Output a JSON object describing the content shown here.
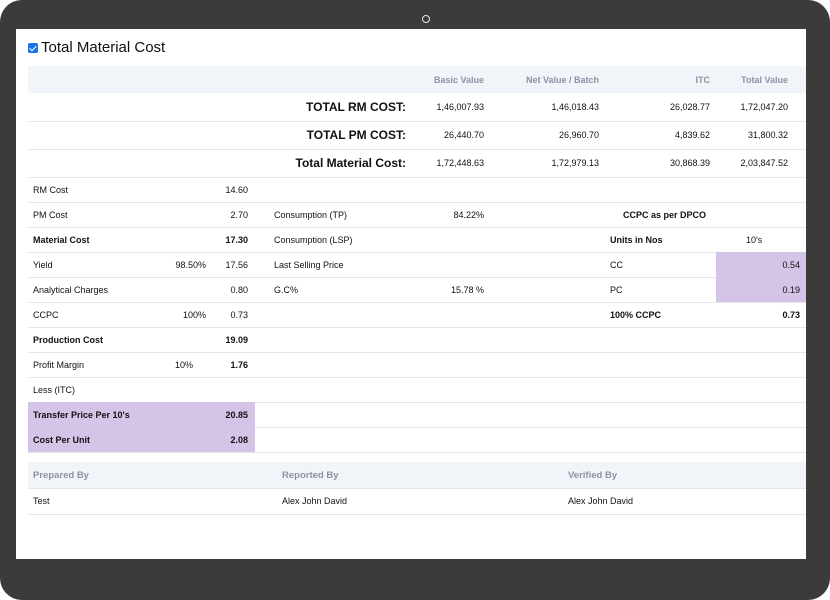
{
  "section": {
    "title": "Total Material Cost"
  },
  "summary_header": {
    "basic_value": "Basic Value",
    "net_value_batch": "Net Value / Batch",
    "itc": "ITC",
    "total_value": "Total Value"
  },
  "summary_rows": [
    {
      "label": "TOTAL RM COST:",
      "basic": "1,46,007.93",
      "net": "1,46,018.43",
      "itc": "26,028.77",
      "total": "1,72,047.20"
    },
    {
      "label": "TOTAL PM COST:",
      "basic": "26,440.70",
      "net": "26,960.70",
      "itc": "4,839.62",
      "total": "31,800.32"
    },
    {
      "label": "Total Material Cost:",
      "basic": "1,72,448.63",
      "net": "1,72,979.13",
      "itc": "30,868.39",
      "total": "2,03,847.52"
    }
  ],
  "cost_rows": [
    {
      "label": "RM Cost",
      "pct": "",
      "value": "14.60"
    },
    {
      "label": "PM Cost",
      "pct": "",
      "value": "2.70"
    },
    {
      "label": "Material Cost",
      "pct": "",
      "value": "17.30"
    },
    {
      "label": "Yield",
      "pct": "98.50%",
      "value": "17.56"
    },
    {
      "label": "Analytical Charges",
      "pct": "",
      "value": "0.80"
    },
    {
      "label": "CCPC",
      "pct": "100%",
      "value": "0.73"
    },
    {
      "label": "Production Cost",
      "pct": "",
      "value": "19.09"
    },
    {
      "label": "Profit Margin",
      "pct": "10%",
      "value": "1.76"
    },
    {
      "label": "Less (ITC)",
      "pct": "",
      "value": ""
    },
    {
      "label": "Transfer Price Per 10's",
      "pct": "",
      "value": "20.85"
    },
    {
      "label": "Cost Per Unit",
      "pct": "",
      "value": "2.08"
    }
  ],
  "middle_rows": [
    {
      "label": "",
      "value": ""
    },
    {
      "label": "Consumption (TP)",
      "value": "84.22%"
    },
    {
      "label": "Consumption (LSP)",
      "value": ""
    },
    {
      "label": "Last Selling Price",
      "value": ""
    },
    {
      "label": "G.C%",
      "value": "15.78 %"
    }
  ],
  "dpco_rows": [
    {
      "label": "",
      "value": ""
    },
    {
      "label": "CCPC as per DPCO",
      "value": ""
    },
    {
      "label": "Units in Nos",
      "value": "10's"
    },
    {
      "label": "CC",
      "value": "0.54"
    },
    {
      "label": "PC",
      "value": "0.19"
    },
    {
      "label": "100% CCPC",
      "value": "0.73"
    }
  ],
  "footer": {
    "prepared_by_label": "Prepared By",
    "reported_by_label": "Reported By",
    "verified_by_label": "Verified By",
    "prepared_by": "Test",
    "reported_by": "Alex John David",
    "verified_by": "Alex John David"
  }
}
